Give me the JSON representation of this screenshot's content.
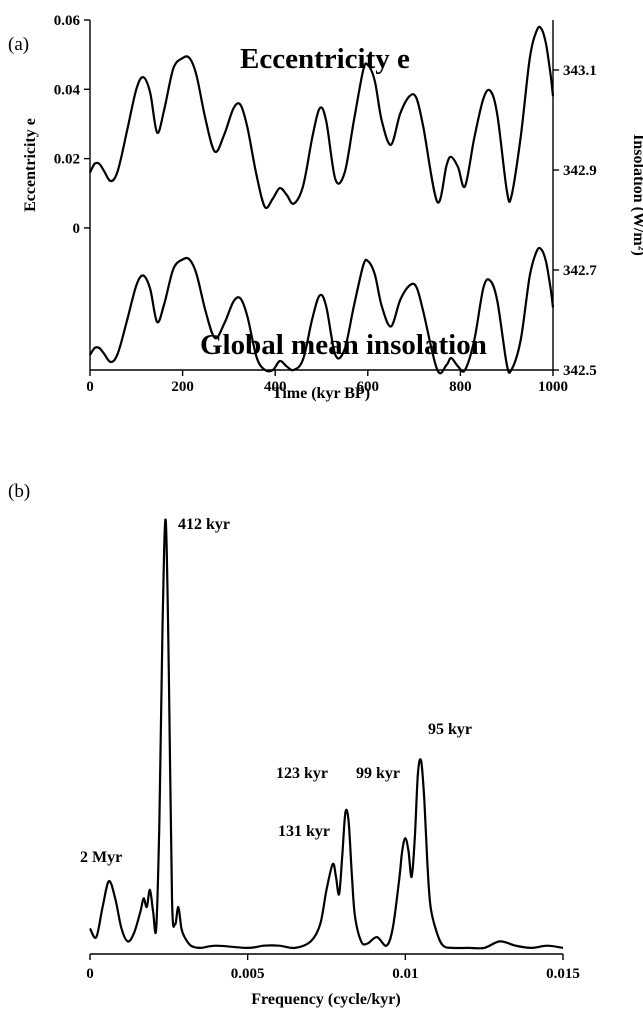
{
  "chart_data": [
    {
      "panel_label": "(a)",
      "type": "line",
      "title": "",
      "xlabel": "Time (kyr BP)",
      "xlim": [
        0,
        1000
      ],
      "x_ticks": [
        "0",
        "200",
        "400",
        "600",
        "800",
        "1000"
      ],
      "ylabel_left": "Eccentricity e",
      "ylim_left": [
        -0.041,
        0.06
      ],
      "y_ticks_left": [
        "0.06",
        "0.04",
        "0.02",
        "0"
      ],
      "ylabel_right": "Insolation (W/m²)",
      "ylim_right": [
        342.5,
        343.1
      ],
      "y_ticks_right": [
        "343.1",
        "342.9",
        "342.7",
        "342.5"
      ],
      "grid": false,
      "series": [
        {
          "name": "Eccentricity e",
          "label_text": "Eccentricity e",
          "axis": "left",
          "x": [
            0,
            10,
            20,
            30,
            45,
            60,
            80,
            100,
            115,
            130,
            145,
            160,
            180,
            200,
            215,
            230,
            250,
            270,
            290,
            310,
            325,
            340,
            360,
            378,
            395,
            410,
            425,
            440,
            460,
            480,
            496,
            510,
            530,
            550,
            570,
            590,
            600,
            615,
            630,
            650,
            670,
            690,
            705,
            720,
            750,
            770,
            780,
            795,
            810,
            830,
            850,
            865,
            880,
            900,
            910,
            930,
            950,
            965,
            975,
            985,
            995,
            1000
          ],
          "y": [
            0.016,
            0.0185,
            0.0185,
            0.0165,
            0.0135,
            0.0165,
            0.028,
            0.04,
            0.0435,
            0.039,
            0.0275,
            0.034,
            0.046,
            0.049,
            0.049,
            0.044,
            0.031,
            0.022,
            0.027,
            0.0345,
            0.0355,
            0.029,
            0.015,
            0.006,
            0.0085,
            0.0115,
            0.0095,
            0.007,
            0.012,
            0.026,
            0.0345,
            0.031,
            0.014,
            0.016,
            0.031,
            0.0455,
            0.047,
            0.0425,
            0.031,
            0.024,
            0.033,
            0.038,
            0.0375,
            0.029,
            0.0075,
            0.018,
            0.0205,
            0.0175,
            0.012,
            0.026,
            0.0375,
            0.0395,
            0.0325,
            0.011,
            0.009,
            0.026,
            0.049,
            0.057,
            0.0575,
            0.053,
            0.044,
            0.038
          ]
        },
        {
          "name": "Global mean insolation",
          "label_text": "Global mean insolation",
          "axis": "right",
          "x": [
            0,
            10,
            20,
            30,
            45,
            60,
            80,
            100,
            115,
            130,
            145,
            160,
            180,
            200,
            215,
            230,
            250,
            270,
            290,
            310,
            325,
            340,
            360,
            378,
            395,
            410,
            425,
            440,
            460,
            480,
            496,
            510,
            530,
            550,
            570,
            590,
            600,
            615,
            630,
            650,
            670,
            690,
            705,
            720,
            750,
            770,
            780,
            795,
            810,
            830,
            850,
            865,
            880,
            900,
            910,
            930,
            950,
            965,
            975,
            985,
            995,
            1000
          ],
          "y": [
            342.53,
            342.544,
            342.544,
            342.533,
            342.516,
            342.533,
            342.599,
            342.669,
            342.689,
            342.662,
            342.596,
            342.631,
            342.702,
            342.721,
            342.721,
            342.692,
            342.616,
            342.564,
            342.593,
            342.637,
            342.643,
            342.607,
            342.525,
            342.5,
            342.5,
            342.518,
            342.507,
            342.5,
            342.521,
            342.602,
            342.649,
            342.628,
            342.53,
            342.542,
            342.628,
            342.709,
            342.718,
            342.692,
            342.628,
            342.587,
            342.64,
            342.669,
            342.666,
            342.616,
            342.5,
            342.51,
            342.524,
            342.507,
            342.5,
            342.56,
            342.666,
            342.678,
            342.637,
            342.512,
            342.5,
            342.559,
            342.689,
            342.738,
            342.741,
            342.716,
            342.662,
            342.625
          ]
        }
      ]
    },
    {
      "panel_label": "(b)",
      "type": "line",
      "title": "",
      "xlabel": "Frequency (cycle/kyr)",
      "xlim": [
        0,
        0.015
      ],
      "x_ticks": [
        "0",
        "0.005",
        "0.01",
        "0.015"
      ],
      "ylabel": "",
      "grid": false,
      "series": [
        {
          "name": "",
          "x": [
            0,
            0.0002,
            0.0004,
            0.0006,
            0.0008,
            0.001,
            0.0012,
            0.0014,
            0.0016,
            0.0017,
            0.0018,
            0.0019,
            0.002,
            0.0021,
            0.0022,
            0.0023,
            0.0024,
            0.0025,
            0.0026,
            0.0027,
            0.0028,
            0.0029,
            0.003,
            0.0032,
            0.0035,
            0.004,
            0.005,
            0.0055,
            0.006,
            0.0065,
            0.007,
            0.0073,
            0.0075,
            0.0077,
            0.0078,
            0.0079,
            0.008,
            0.0081,
            0.0082,
            0.0083,
            0.0084,
            0.0086,
            0.0088,
            0.0091,
            0.0094,
            0.0096,
            0.0098,
            0.0099,
            0.01,
            0.0101,
            0.0102,
            0.0103,
            0.0104,
            0.0105,
            0.0106,
            0.0107,
            0.0108,
            0.011,
            0.0112,
            0.0115,
            0.012,
            0.0125,
            0.013,
            0.0135,
            0.014,
            0.0145,
            0.015
          ],
          "y": [
            0.05,
            0.03,
            0.1,
            0.16,
            0.12,
            0.05,
            0.02,
            0.04,
            0.09,
            0.12,
            0.1,
            0.14,
            0.09,
            0.05,
            0.3,
            0.75,
            1.0,
            0.65,
            0.12,
            0.06,
            0.1,
            0.05,
            0.03,
            0.01,
            0.005,
            0.01,
            0.005,
            0.01,
            0.01,
            0.005,
            0.02,
            0.06,
            0.14,
            0.2,
            0.17,
            0.13,
            0.22,
            0.32,
            0.3,
            0.18,
            0.08,
            0.02,
            0.015,
            0.03,
            0.01,
            0.05,
            0.16,
            0.23,
            0.26,
            0.23,
            0.17,
            0.26,
            0.41,
            0.44,
            0.35,
            0.2,
            0.1,
            0.04,
            0.01,
            0.005,
            0.005,
            0.005,
            0.02,
            0.01,
            0.005,
            0.01,
            0.005
          ]
        }
      ],
      "annotations": [
        "2 Myr",
        "412 kyr",
        "131 kyr",
        "123 kyr",
        "99 kyr",
        "95 kyr"
      ]
    }
  ]
}
